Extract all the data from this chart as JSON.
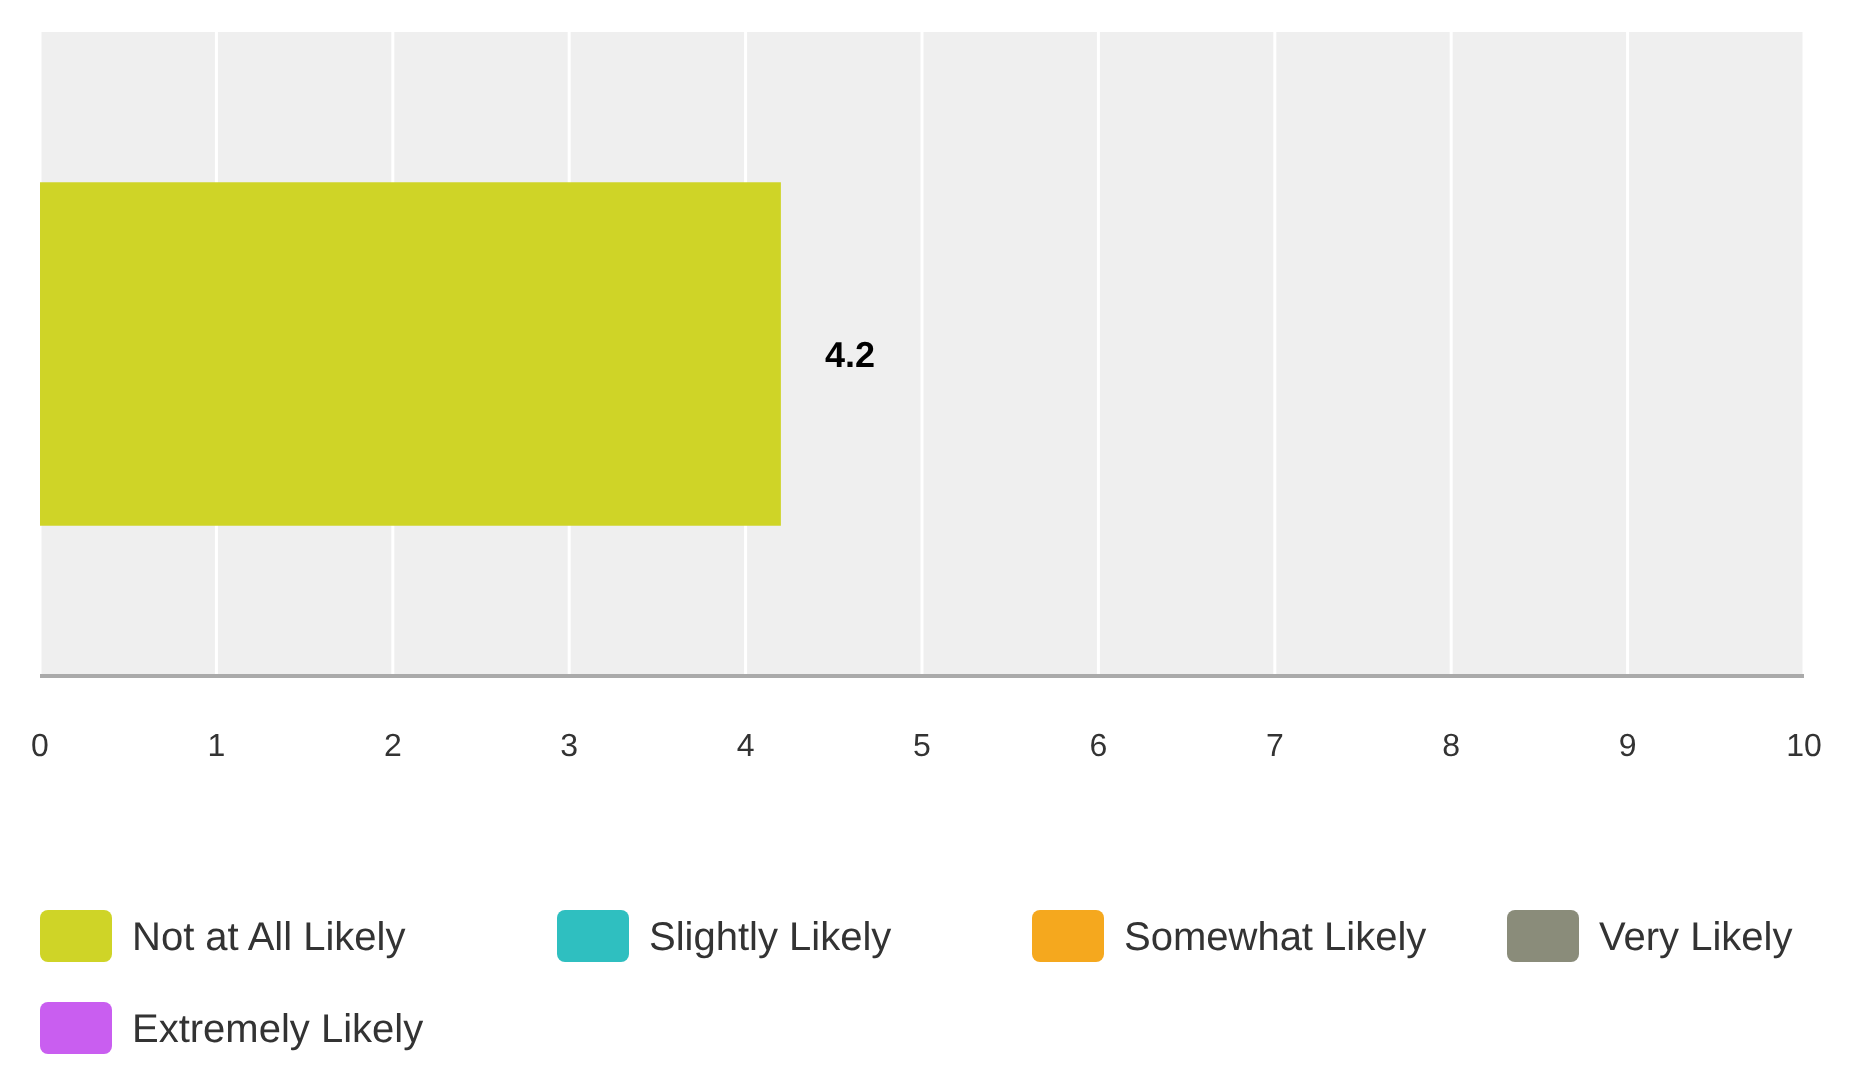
{
  "chart_data": {
    "type": "bar",
    "orientation": "horizontal",
    "categories": [
      null
    ],
    "series": [
      {
        "name": "Not at All Likely",
        "color": "#cfd427",
        "values": [
          4.2
        ]
      },
      {
        "name": "Slightly Likely",
        "color": "#2fbfc0",
        "values": [
          null
        ]
      },
      {
        "name": "Somewhat Likely",
        "color": "#f5a81e",
        "values": [
          null
        ]
      },
      {
        "name": "Very Likely",
        "color": "#8a8c7a",
        "values": [
          null
        ]
      },
      {
        "name": "Extremely Likely",
        "color": "#c95ef0",
        "values": [
          null
        ]
      }
    ],
    "xlim": [
      0,
      10
    ],
    "xticks": [
      0,
      1,
      2,
      3,
      4,
      5,
      6,
      7,
      8,
      9,
      10
    ],
    "grid": "x",
    "data_labels": true,
    "legend": "bottom"
  }
}
